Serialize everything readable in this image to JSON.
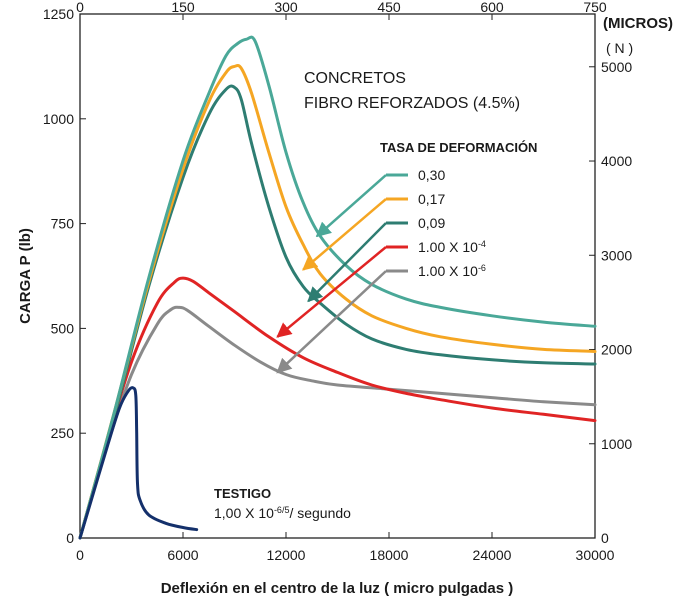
{
  "chart_data": {
    "type": "line",
    "title": "CONCRETOS FIBRO REFORZADOS (4.5%)",
    "subtitle_lines": [
      "CONCRETOS",
      "FIBRO REFORZADOS (4.5%)"
    ],
    "xlabel": "Deflexión en el centro de la luz ( micro pulgadas )",
    "ylabel": "CARGA P (lb)",
    "x2label": "(MICROS)",
    "y2label": "( N )",
    "xlim": [
      0,
      30000
    ],
    "ylim": [
      0,
      1250
    ],
    "x2lim": [
      0,
      750
    ],
    "y2lim": [
      0,
      5560
    ],
    "x_ticks": [
      0,
      6000,
      12000,
      18000,
      24000,
      30000
    ],
    "y_ticks": [
      0,
      250,
      500,
      750,
      1000,
      1250
    ],
    "x2_ticks": [
      0,
      150,
      300,
      450,
      600,
      750
    ],
    "y2_ticks": [
      0,
      1000,
      2000,
      3000,
      4000,
      5000
    ],
    "grid": false,
    "legend_title": "TASA DE DEFORMACIÓN",
    "series": [
      {
        "name": "0,30",
        "color": "#4aa898",
        "x": [
          0,
          2000,
          4000,
          6000,
          7500,
          8500,
          9200,
          9700,
          10200,
          11000,
          12000,
          13000,
          14000,
          15500,
          17000,
          19000,
          21000,
          24000,
          27000,
          30000
        ],
        "y": [
          0,
          300,
          620,
          900,
          1060,
          1150,
          1180,
          1190,
          1185,
          1080,
          920,
          800,
          720,
          650,
          605,
          570,
          550,
          530,
          515,
          505
        ]
      },
      {
        "name": "0,17",
        "color": "#f5a623",
        "x": [
          0,
          2000,
          4000,
          6000,
          7500,
          8500,
          9000,
          9400,
          10000,
          11000,
          12000,
          13000,
          14000,
          15500,
          17000,
          19000,
          21000,
          24000,
          27000,
          30000
        ],
        "y": [
          0,
          300,
          610,
          880,
          1040,
          1110,
          1125,
          1120,
          1060,
          920,
          790,
          700,
          630,
          570,
          530,
          500,
          480,
          462,
          450,
          445
        ]
      },
      {
        "name": "0,09",
        "color": "#2e7d72",
        "x": [
          0,
          2000,
          4000,
          6000,
          7500,
          8500,
          9000,
          9400,
          10000,
          11000,
          12000,
          13000,
          14000,
          15500,
          17000,
          19000,
          21000,
          24000,
          27000,
          30000
        ],
        "y": [
          0,
          290,
          600,
          860,
          1010,
          1070,
          1075,
          1045,
          940,
          790,
          670,
          600,
          560,
          510,
          475,
          450,
          437,
          425,
          418,
          415
        ]
      },
      {
        "name": "1.00 X 10⁻⁴",
        "color": "#e02424",
        "x": [
          0,
          1500,
          3000,
          4500,
          5500,
          6000,
          6600,
          7500,
          9000,
          11000,
          13000,
          15000,
          17000,
          19000,
          21000,
          24000,
          27000,
          30000
        ],
        "y": [
          0,
          220,
          420,
          560,
          610,
          620,
          612,
          585,
          540,
          480,
          430,
          395,
          365,
          345,
          330,
          310,
          295,
          280
        ]
      },
      {
        "name": "1.00 X 10⁻⁶",
        "color": "#8a8a8a",
        "x": [
          0,
          1500,
          3000,
          4500,
          5300,
          5800,
          6300,
          7500,
          9000,
          10500,
          12000,
          13500,
          15000,
          18000,
          21000,
          24000,
          27000,
          30000
        ],
        "y": [
          0,
          210,
          390,
          510,
          545,
          550,
          542,
          505,
          460,
          420,
          390,
          375,
          365,
          355,
          345,
          335,
          325,
          318
        ]
      },
      {
        "name": "TESTIGO",
        "color": "#14306b",
        "x": [
          0,
          800,
          1600,
          2300,
          2800,
          3100,
          3250,
          3300,
          3350,
          3500,
          4000,
          5000,
          6000,
          6800
        ],
        "y": [
          0,
          110,
          220,
          310,
          350,
          358,
          340,
          250,
          130,
          90,
          55,
          35,
          25,
          20
        ]
      }
    ],
    "annotations": {
      "testigo_title": "TESTIGO",
      "testigo_rate_base": "1,00 X 10",
      "testigo_rate_exp": "-6/5",
      "testigo_rate_unit": "/ segundo",
      "legend_items": [
        {
          "base": "0,30",
          "exp": ""
        },
        {
          "base": "0,17",
          "exp": ""
        },
        {
          "base": "0,09",
          "exp": ""
        },
        {
          "base": "1.00 X 10",
          "exp": "-4"
        },
        {
          "base": "1.00 X 10",
          "exp": "-6"
        }
      ]
    }
  }
}
